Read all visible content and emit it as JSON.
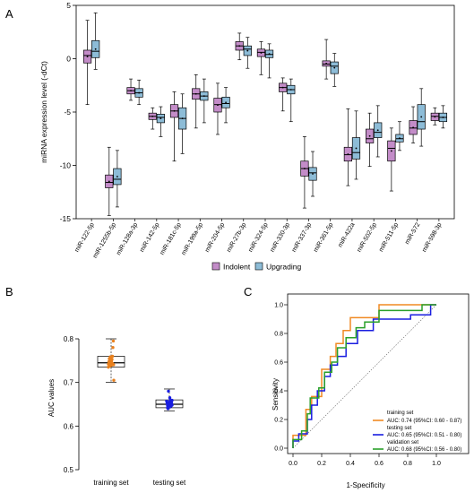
{
  "panels": {
    "a": "A",
    "b": "B",
    "c": "C"
  },
  "chart_data": [
    {
      "type": "box",
      "ylabel": "miRNA expression level (-dCt)",
      "ylim": [
        -15,
        5
      ],
      "yticks": [
        -15,
        -10,
        -5,
        0,
        5
      ],
      "groups": [
        {
          "name": "Indolent",
          "color": "#c38cc8"
        },
        {
          "name": "Upgrading",
          "color": "#8dbcd7"
        }
      ],
      "legend_position": "bottom-center",
      "categories": [
        "miR-122-5p",
        "miR-1255b-5p",
        "miR-128a-3p",
        "miR-142-5p",
        "miR-181c-5p",
        "miR-199a-5p",
        "miR-204-5p",
        "miR-27b-3p",
        "miR-324-5p",
        "miR-330-3p",
        "miR-337-3p",
        "miR-361-5p",
        "miR-422a",
        "miR-502-5p",
        "miR-511-5p",
        "miR-572",
        "miR-598-3p"
      ],
      "boxes": [
        {
          "indolent": {
            "min": -4.3,
            "q1": -0.4,
            "median": 0.3,
            "q3": 0.8,
            "max": 3.6
          },
          "upgrading": {
            "min": -1.0,
            "q1": 0.1,
            "median": 0.7,
            "q3": 1.7,
            "max": 4.3
          }
        },
        {
          "indolent": {
            "min": -14.7,
            "q1": -12.1,
            "median": -11.6,
            "q3": -10.9,
            "max": -8.3
          },
          "upgrading": {
            "min": -13.9,
            "q1": -11.8,
            "median": -11.3,
            "q3": -10.3,
            "max": -8.6
          }
        },
        {
          "indolent": {
            "min": -3.9,
            "q1": -3.3,
            "median": -3.0,
            "q3": -2.7,
            "max": -1.9
          },
          "upgrading": {
            "min": -4.3,
            "q1": -3.6,
            "median": -3.2,
            "q3": -2.8,
            "max": -2.0
          }
        },
        {
          "indolent": {
            "min": -6.6,
            "q1": -5.7,
            "median": -5.4,
            "q3": -5.1,
            "max": -4.6
          },
          "upgrading": {
            "min": -7.3,
            "q1": -6.0,
            "median": -5.5,
            "q3": -5.2,
            "max": -4.5
          }
        },
        {
          "indolent": {
            "min": -9.6,
            "q1": -5.5,
            "median": -4.9,
            "q3": -4.3,
            "max": -3.1
          },
          "upgrading": {
            "min": -8.9,
            "q1": -6.6,
            "median": -5.6,
            "q3": -4.6,
            "max": -3.3
          }
        },
        {
          "indolent": {
            "min": -6.5,
            "q1": -3.8,
            "median": -3.3,
            "q3": -2.8,
            "max": -1.5
          },
          "upgrading": {
            "min": -6.0,
            "q1": -3.9,
            "median": -3.5,
            "q3": -3.1,
            "max": -1.9
          }
        },
        {
          "indolent": {
            "min": -7.1,
            "q1": -5.0,
            "median": -4.3,
            "q3": -3.7,
            "max": -2.3
          },
          "upgrading": {
            "min": -6.0,
            "q1": -4.6,
            "median": -4.2,
            "q3": -3.6,
            "max": -2.7
          }
        },
        {
          "indolent": {
            "min": -0.1,
            "q1": 0.8,
            "median": 1.2,
            "q3": 1.6,
            "max": 2.4
          },
          "upgrading": {
            "min": -0.9,
            "q1": 0.3,
            "median": 0.9,
            "q3": 1.2,
            "max": 2.0
          }
        },
        {
          "indolent": {
            "min": -1.5,
            "q1": 0.2,
            "median": 0.6,
            "q3": 0.9,
            "max": 1.6
          },
          "upgrading": {
            "min": -1.8,
            "q1": 0.1,
            "median": 0.4,
            "q3": 0.8,
            "max": 1.4
          }
        },
        {
          "indolent": {
            "min": -4.9,
            "q1": -3.1,
            "median": -2.7,
            "q3": -2.3,
            "max": -1.8
          },
          "upgrading": {
            "min": -5.9,
            "q1": -3.3,
            "median": -2.9,
            "q3": -2.5,
            "max": -1.9
          }
        },
        {
          "indolent": {
            "min": -14.0,
            "q1": -11.0,
            "median": -10.3,
            "q3": -9.6,
            "max": -7.3
          },
          "upgrading": {
            "min": -12.9,
            "q1": -11.4,
            "median": -10.7,
            "q3": -10.2,
            "max": -8.7
          }
        },
        {
          "indolent": {
            "min": -1.9,
            "q1": -0.7,
            "median": -0.5,
            "q3": -0.2,
            "max": 1.8
          },
          "upgrading": {
            "min": -2.6,
            "q1": -1.4,
            "median": -0.7,
            "q3": -0.3,
            "max": 0.5
          }
        },
        {
          "indolent": {
            "min": -11.9,
            "q1": -9.6,
            "median": -9.0,
            "q3": -8.3,
            "max": -4.7
          },
          "upgrading": {
            "min": -11.3,
            "q1": -9.4,
            "median": -8.8,
            "q3": -7.4,
            "max": -4.9
          }
        },
        {
          "indolent": {
            "min": -10.1,
            "q1": -7.9,
            "median": -7.5,
            "q3": -6.6,
            "max": -5.1
          },
          "upgrading": {
            "min": -9.2,
            "q1": -7.4,
            "median": -6.9,
            "q3": -6.0,
            "max": -4.4
          }
        },
        {
          "indolent": {
            "min": -12.4,
            "q1": -9.6,
            "median": -8.4,
            "q3": -7.7,
            "max": -6.5
          },
          "upgrading": {
            "min": -8.6,
            "q1": -7.8,
            "median": -7.5,
            "q3": -7.1,
            "max": -5.9
          }
        },
        {
          "indolent": {
            "min": -7.9,
            "q1": -7.1,
            "median": -6.5,
            "q3": -5.8,
            "max": -4.5
          },
          "upgrading": {
            "min": -8.2,
            "q1": -6.6,
            "median": -5.9,
            "q3": -4.3,
            "max": -2.8
          }
        },
        {
          "indolent": {
            "min": -6.2,
            "q1": -5.8,
            "median": -5.4,
            "q3": -5.1,
            "max": -4.6
          },
          "upgrading": {
            "min": -6.5,
            "q1": -5.9,
            "median": -5.5,
            "q3": -5.1,
            "max": -4.4
          }
        }
      ]
    },
    {
      "type": "box",
      "ylabel": "AUC values",
      "ylim": [
        0.5,
        0.85
      ],
      "yticks": [
        0.5,
        0.6,
        0.7,
        0.8
      ],
      "categories": [
        "training set",
        "testing set"
      ],
      "boxes": [
        {
          "min": 0.7,
          "q1": 0.735,
          "median": 0.745,
          "q3": 0.76,
          "max": 0.8,
          "color": "#e8801e"
        },
        {
          "min": 0.635,
          "q1": 0.642,
          "median": 0.65,
          "q3": 0.66,
          "max": 0.685,
          "color": "#1a1ee0"
        }
      ]
    },
    {
      "type": "line",
      "xlabel": "1-Specificity",
      "ylabel": "Sensitivity",
      "xlim": [
        0,
        1
      ],
      "ylim": [
        0,
        1
      ],
      "ticks": [
        0.0,
        0.2,
        0.4,
        0.6,
        0.8,
        1.0
      ],
      "diagonal_reference": true,
      "legend_position": "bottom-right",
      "series": [
        {
          "name": "training set",
          "auc_text": "AUC: 0.74 (95%CI: 0.60 - 0.87)",
          "color": "#f08a24",
          "x": [
            0,
            0,
            0.09,
            0.09,
            0.13,
            0.13,
            0.2,
            0.2,
            0.26,
            0.26,
            0.3,
            0.3,
            0.35,
            0.35,
            0.4,
            0.4,
            0.6,
            0.6,
            0.85,
            0.85,
            1.0
          ],
          "y": [
            0,
            0.09,
            0.09,
            0.27,
            0.27,
            0.36,
            0.36,
            0.55,
            0.55,
            0.64,
            0.64,
            0.73,
            0.73,
            0.82,
            0.82,
            0.91,
            0.91,
            1.0,
            1.0,
            1.0,
            1.0
          ]
        },
        {
          "name": "testing set",
          "auc_text": "AUC: 0.65 (95%CI: 0.51 - 0.80)",
          "color": "#1a1ee0",
          "x": [
            0,
            0,
            0.04,
            0.04,
            0.1,
            0.1,
            0.13,
            0.13,
            0.17,
            0.17,
            0.22,
            0.22,
            0.26,
            0.26,
            0.31,
            0.31,
            0.37,
            0.37,
            0.45,
            0.45,
            0.56,
            0.56,
            0.82,
            0.82,
            0.96,
            0.96,
            1.0
          ],
          "y": [
            0,
            0.05,
            0.05,
            0.1,
            0.1,
            0.2,
            0.2,
            0.3,
            0.3,
            0.4,
            0.4,
            0.5,
            0.5,
            0.58,
            0.58,
            0.64,
            0.64,
            0.73,
            0.73,
            0.82,
            0.82,
            0.9,
            0.9,
            0.93,
            0.93,
            1.0,
            1.0
          ]
        },
        {
          "name": "validation set",
          "auc_text": "AUC: 0.68 (95%CI: 0.56 - 0.80)",
          "color": "#2aa02a",
          "x": [
            0,
            0,
            0.06,
            0.06,
            0.1,
            0.1,
            0.12,
            0.12,
            0.18,
            0.18,
            0.22,
            0.22,
            0.27,
            0.27,
            0.31,
            0.31,
            0.37,
            0.37,
            0.44,
            0.44,
            0.5,
            0.5,
            0.6,
            0.6,
            0.9,
            0.9,
            1.0
          ],
          "y": [
            0,
            0.06,
            0.06,
            0.12,
            0.12,
            0.24,
            0.24,
            0.35,
            0.35,
            0.42,
            0.42,
            0.53,
            0.53,
            0.6,
            0.6,
            0.7,
            0.7,
            0.77,
            0.77,
            0.84,
            0.84,
            0.88,
            0.88,
            0.96,
            0.96,
            1.0,
            1.0
          ]
        }
      ]
    }
  ]
}
